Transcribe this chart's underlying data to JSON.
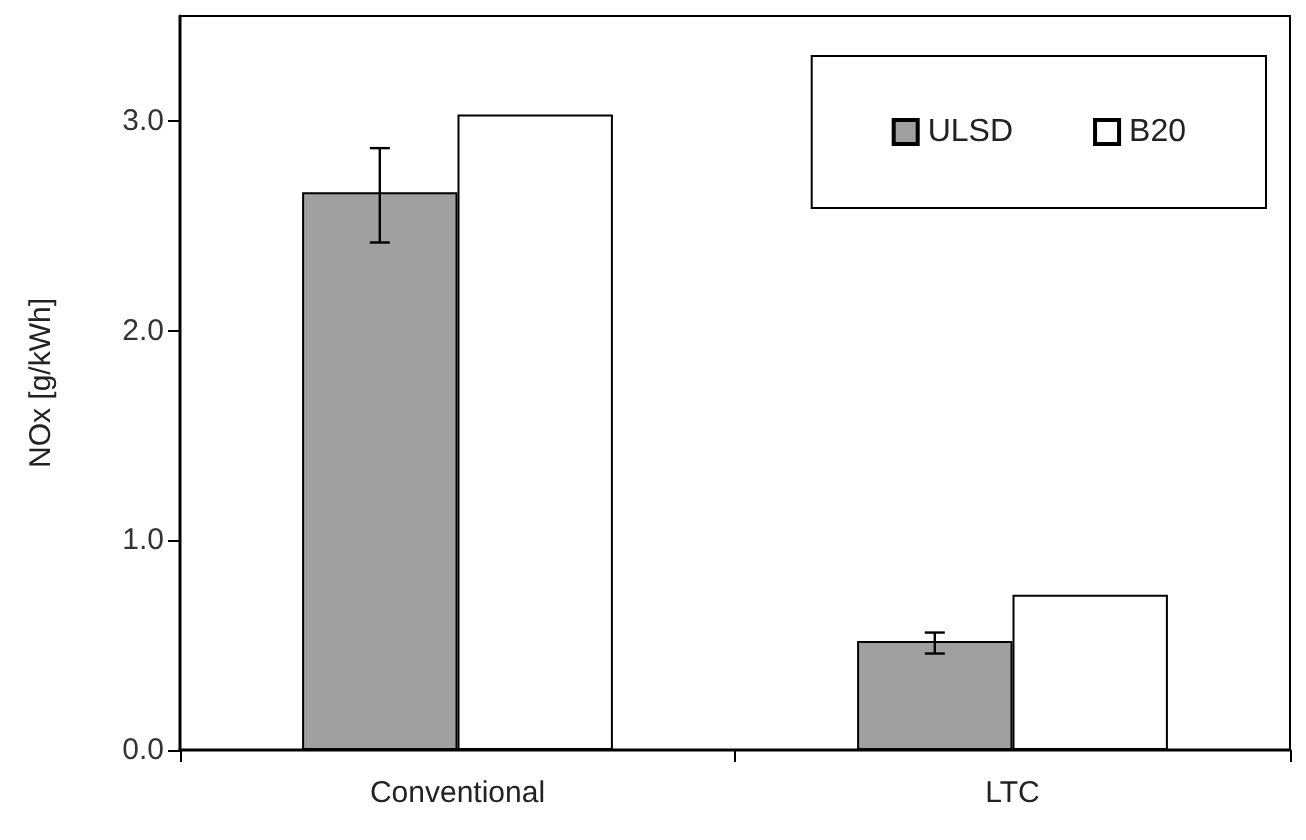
{
  "chart_data": {
    "type": "bar",
    "ylabel": "NOx [g/kWh]",
    "categories": [
      "Conventional",
      "LTC"
    ],
    "series": [
      {
        "name": "ULSD",
        "color": "#a0a0a0",
        "values": [
          2.66,
          0.52
        ],
        "errors": [
          [
            2.42,
            2.87
          ],
          [
            0.46,
            0.56
          ]
        ]
      },
      {
        "name": "B20",
        "color": "#ffffff",
        "values": [
          3.03,
          0.74
        ]
      }
    ],
    "ylim": [
      0,
      3.5
    ],
    "yticks": [
      {
        "value": 0,
        "label": "0.0"
      },
      {
        "value": 1,
        "label": "1.0"
      },
      {
        "value": 2,
        "label": "2.0"
      },
      {
        "value": 3,
        "label": "3.0"
      }
    ],
    "grid": false,
    "legend": "top right"
  }
}
